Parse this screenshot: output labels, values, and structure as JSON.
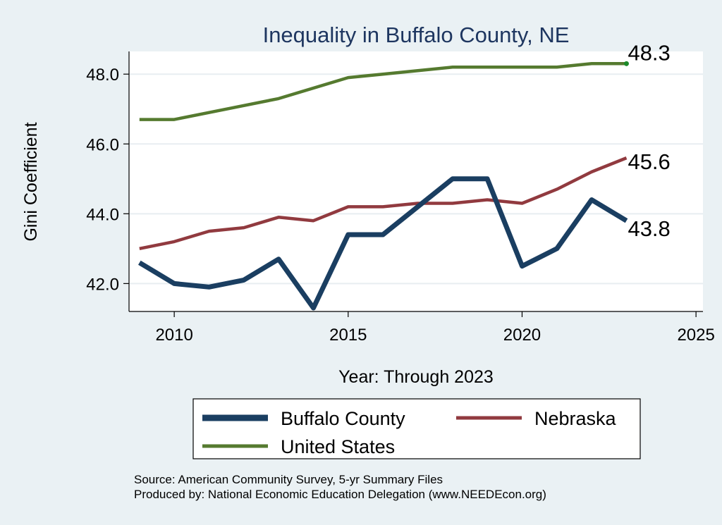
{
  "chart_data": {
    "type": "line",
    "title": "Inequality in Buffalo County, NE",
    "xlabel": "Year: Through 2023",
    "ylabel": "Gini Coefficient",
    "xlim": [
      2008.7,
      2025.2
    ],
    "ylim": [
      41.2,
      48.65
    ],
    "xticks": [
      2010,
      2015,
      2020,
      2025
    ],
    "yticks": [
      42.0,
      44.0,
      46.0,
      48.0
    ],
    "grid": true,
    "x": [
      2009,
      2010,
      2011,
      2012,
      2013,
      2014,
      2015,
      2016,
      2017,
      2018,
      2019,
      2020,
      2021,
      2022,
      2023
    ],
    "series": [
      {
        "name": "Buffalo County",
        "color": "#1a3e61",
        "values": [
          42.6,
          42.0,
          41.9,
          42.1,
          42.7,
          41.3,
          43.4,
          43.4,
          44.2,
          45.0,
          45.0,
          42.5,
          43.0,
          44.4,
          43.8
        ],
        "end_label": "43.8"
      },
      {
        "name": "Nebraska",
        "color": "#913a3f",
        "values": [
          43.0,
          43.2,
          43.5,
          43.6,
          43.9,
          43.8,
          44.2,
          44.2,
          44.3,
          44.3,
          44.4,
          44.3,
          44.7,
          45.2,
          45.6
        ],
        "end_label": "45.6"
      },
      {
        "name": "United States",
        "color": "#557a2f",
        "values": [
          46.7,
          46.7,
          46.9,
          47.1,
          47.3,
          47.6,
          47.9,
          48.0,
          48.1,
          48.2,
          48.2,
          48.2,
          48.2,
          48.3,
          48.3
        ],
        "end_label": "48.3"
      }
    ],
    "legend": {
      "placement": "bottom",
      "entries": [
        "Buffalo County",
        "Nebraska",
        "United States"
      ]
    }
  },
  "source_lines": [
    "Source: American Community Survey, 5-yr Summary Files",
    "Produced by: National Economic Education Delegation (www.NEEDEcon.org)"
  ],
  "colors": {
    "background": "#eaf1f4",
    "plot_bg": "#ffffff",
    "title": "#1e3660",
    "grid": "#e8eef1"
  }
}
